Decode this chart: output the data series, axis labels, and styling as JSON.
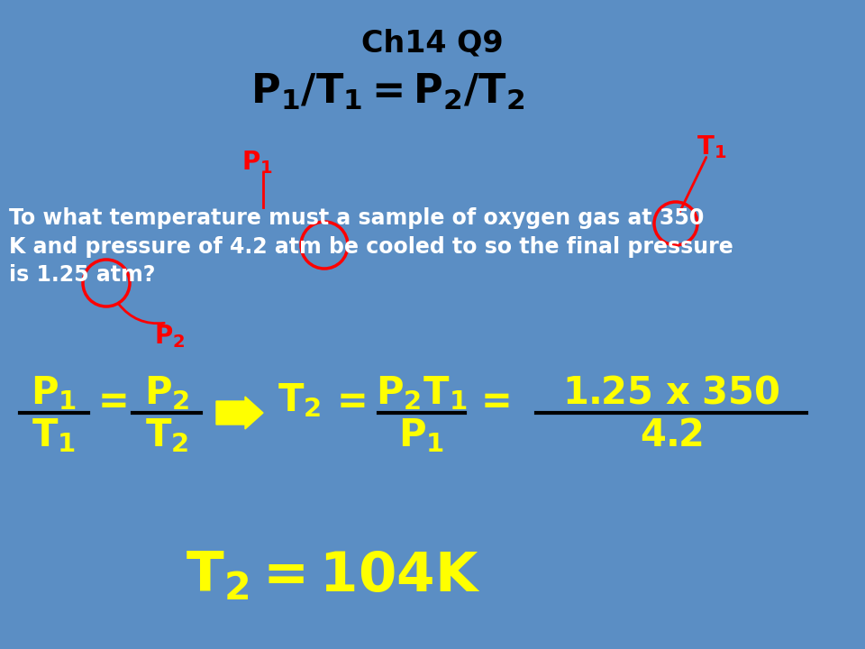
{
  "bg_color": "#5b8ec4",
  "formula_yellow": "#ffff00",
  "label_red": "#ff0000",
  "text_white": "#ffffff",
  "text_black": "#000000",
  "title1": "Ch14 Q9",
  "title2": "$\\mathbf{P_1/T_1 = P_2/T_2}$",
  "problem_text": "To what temperature must a sample of oxygen gas at 350\nK and pressure of 4.2 atm be cooled to so the final pressure\nis 1.25 atm?",
  "answer": "$\\mathbf{T_2 = 104K}$"
}
